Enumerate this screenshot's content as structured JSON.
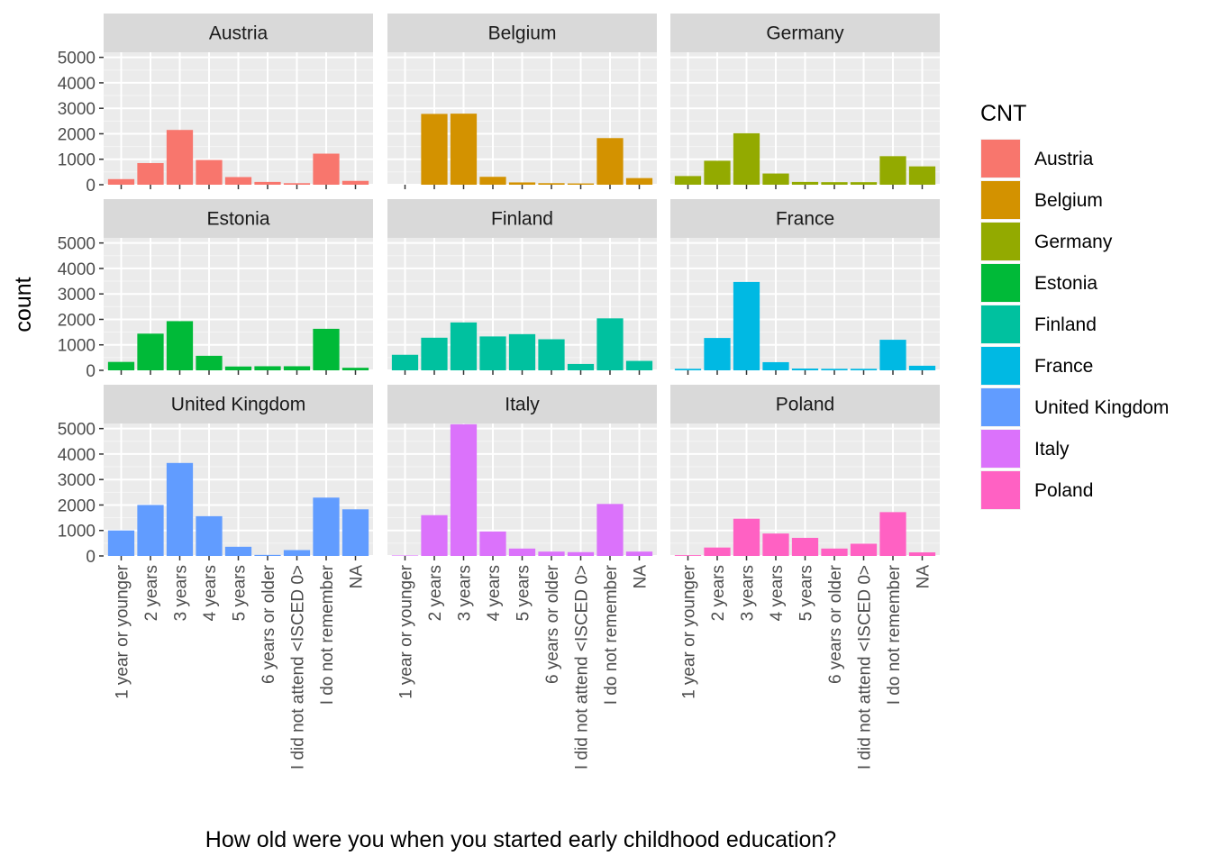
{
  "chart_data": {
    "type": "bar",
    "facet_by": "CNT",
    "xlabel": "How old were you when you started early childhood education?",
    "ylabel": "count",
    "ylim": [
      0,
      5200
    ],
    "yticks": [
      0,
      1000,
      2000,
      3000,
      4000,
      5000
    ],
    "grid": true,
    "legend": {
      "title": "CNT",
      "position": "right"
    },
    "categories": [
      "1 year or younger",
      "2 years",
      "3 years",
      "4 years",
      "5 years",
      "6 years or older",
      "I did not attend <ISCED 0>",
      "I do not remember",
      "NA"
    ],
    "series": [
      {
        "name": "Austria",
        "color": "#F8766D",
        "values": [
          220,
          850,
          2150,
          970,
          300,
          110,
          60,
          1220,
          150
        ]
      },
      {
        "name": "Belgium",
        "color": "#D39200",
        "values": [
          0,
          2780,
          2790,
          310,
          90,
          60,
          50,
          1830,
          260
        ]
      },
      {
        "name": "Germany",
        "color": "#93AA00",
        "values": [
          340,
          940,
          2020,
          440,
          110,
          100,
          100,
          1120,
          720
        ]
      },
      {
        "name": "Estonia",
        "color": "#00BA38",
        "values": [
          330,
          1440,
          1930,
          570,
          150,
          160,
          160,
          1630,
          100
        ]
      },
      {
        "name": "Finland",
        "color": "#00C19F",
        "values": [
          610,
          1280,
          1880,
          1330,
          1420,
          1220,
          250,
          2040,
          370
        ]
      },
      {
        "name": "France",
        "color": "#00B9E3",
        "values": [
          60,
          1270,
          3470,
          320,
          70,
          60,
          60,
          1200,
          180
        ]
      },
      {
        "name": "United Kingdom",
        "color": "#619CFF",
        "values": [
          1000,
          2000,
          3650,
          1560,
          360,
          40,
          230,
          2290,
          1830
        ]
      },
      {
        "name": "Italy",
        "color": "#DB72FB",
        "values": [
          20,
          1600,
          5170,
          960,
          290,
          170,
          150,
          2040,
          170
        ]
      },
      {
        "name": "Poland",
        "color": "#FF61C3",
        "values": [
          30,
          330,
          1460,
          880,
          710,
          290,
          480,
          1720,
          140
        ]
      }
    ]
  }
}
